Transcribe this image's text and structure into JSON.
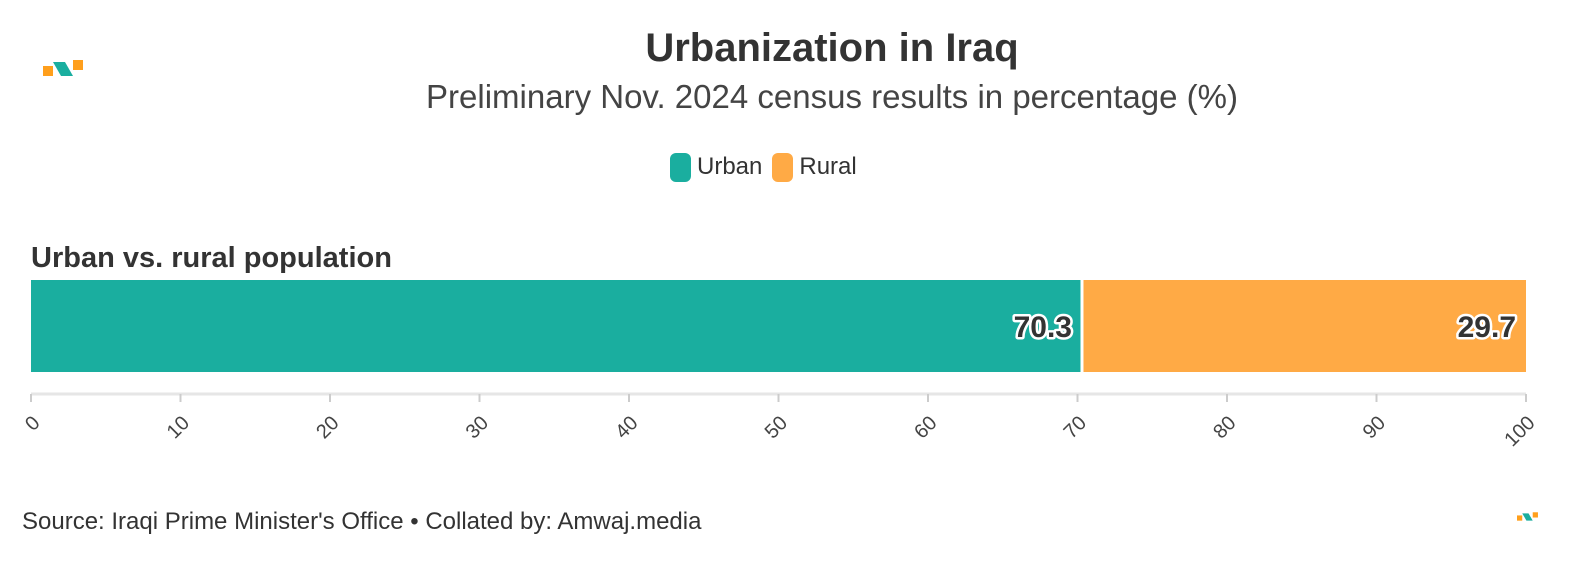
{
  "header": {
    "title": "Urbanization in Iraq",
    "subtitle": "Preliminary Nov. 2024 census results in percentage (%)"
  },
  "legend": [
    {
      "label": "Urban",
      "color": "#1AAE9F"
    },
    {
      "label": "Rural",
      "color": "#FFAA45"
    }
  ],
  "footer": {
    "source": "Source: Iraqi Prime Minister's Office • Collated by: Amwaj.media"
  },
  "logo": {
    "icon": "amwaj-logo-icon",
    "colors": [
      "#FF9F1C",
      "#1AAE9F"
    ]
  },
  "chart_data": {
    "type": "bar",
    "orientation": "horizontal",
    "stacked": true,
    "title": "Urbanization in Iraq",
    "subtitle": "Preliminary Nov. 2024 census results in percentage (%)",
    "categories": [
      "Urban vs. rural population"
    ],
    "series": [
      {
        "name": "Urban",
        "values": [
          70.3
        ],
        "color": "#1AAE9F"
      },
      {
        "name": "Rural",
        "values": [
          29.7
        ],
        "color": "#FFAA45"
      }
    ],
    "xlim": [
      0,
      100
    ],
    "xticks": [
      0,
      10,
      20,
      30,
      40,
      50,
      60,
      70,
      80,
      90,
      100
    ],
    "xlabel": "",
    "ylabel": "",
    "grid": false,
    "legend_position": "top"
  }
}
